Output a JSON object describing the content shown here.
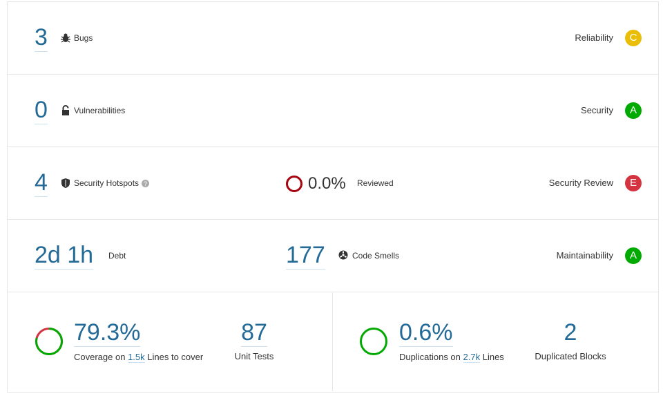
{
  "rows": [
    {
      "value": "3",
      "label": "Bugs",
      "rating_name": "Reliability",
      "rating": "C"
    },
    {
      "value": "0",
      "label": "Vulnerabilities",
      "rating_name": "Security",
      "rating": "A"
    },
    {
      "value": "4",
      "label": "Security Hotspots",
      "reviewed_value": "0.0%",
      "reviewed_label": "Reviewed",
      "rating_name": "Security Review",
      "rating": "E"
    },
    {
      "value": "2d 1h",
      "label": "Debt",
      "smells_value": "177",
      "smells_label": "Code Smells",
      "rating_name": "Maintainability",
      "rating": "A"
    }
  ],
  "coverage": {
    "value": "79.3%",
    "prefix": "Coverage on",
    "lines": "1.5k",
    "suffix": "Lines to cover",
    "tests_value": "87",
    "tests_label": "Unit Tests"
  },
  "duplications": {
    "value": "0.6%",
    "prefix": "Duplications on",
    "lines": "2.7k",
    "suffix": "Lines",
    "blocks_value": "2",
    "blocks_label": "Duplicated Blocks"
  }
}
